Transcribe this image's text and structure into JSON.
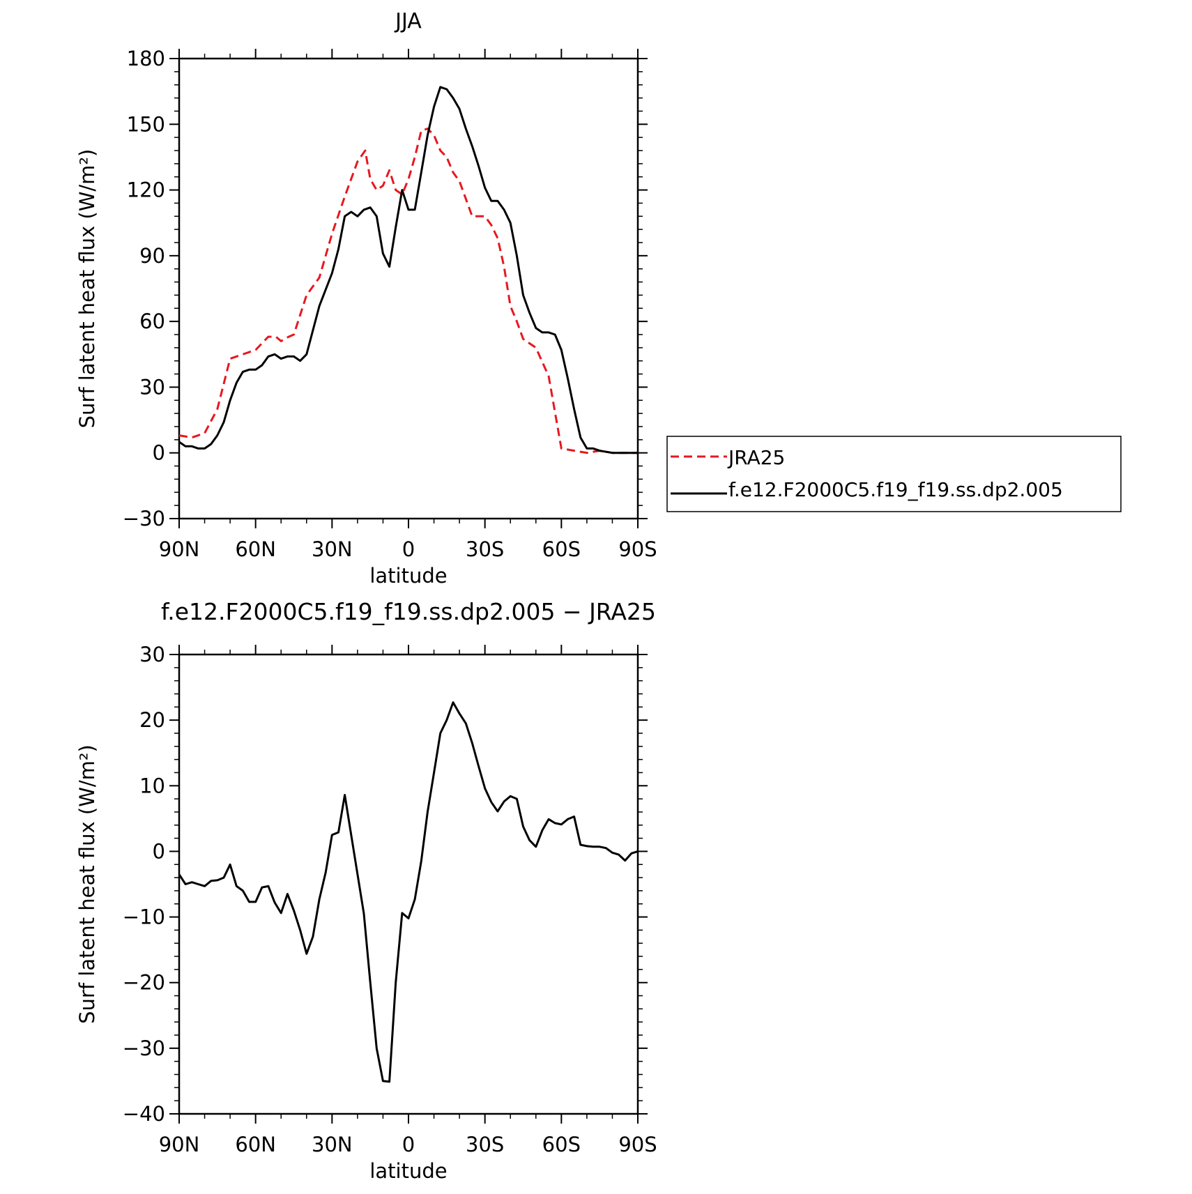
{
  "figure": {
    "title_top": "JJA",
    "title_bottom": "f.e12.F2000C5.f19_f19.ss.dp2.005 − JRA25"
  },
  "chart_data": [
    {
      "type": "line",
      "title": "JJA",
      "xlabel": "latitude",
      "ylabel": "Surf latent heat flux (W/m²)",
      "xlim": [
        90,
        -90
      ],
      "ylim": [
        -30,
        180
      ],
      "xticks": [
        90,
        60,
        30,
        0,
        -30,
        -60,
        -90
      ],
      "xtick_labels": [
        "90N",
        "60N",
        "30N",
        "0",
        "30S",
        "60S",
        "90S"
      ],
      "yticks": [
        -30,
        0,
        30,
        60,
        90,
        120,
        150,
        180
      ],
      "ytick_labels": [
        "−30",
        "0",
        "30",
        "60",
        "90",
        "120",
        "150",
        "180"
      ],
      "legend_position": "right",
      "grid": false,
      "series": [
        {
          "name": "JRA25",
          "color": "#e8171f",
          "dash": "dashed",
          "x": [
            90,
            85,
            80,
            75,
            70,
            65,
            60,
            55,
            52,
            50,
            47,
            45,
            40,
            35,
            30,
            25,
            20,
            17,
            15,
            12.5,
            10,
            7.5,
            5,
            2.5,
            0,
            -2.5,
            -5,
            -7.5,
            -10,
            -12.5,
            -15,
            -17.5,
            -20,
            -25,
            -30,
            -32.5,
            -35,
            -37.5,
            -40,
            -42.5,
            -45,
            -50,
            -55,
            -60,
            -65,
            -70,
            -75,
            -80,
            -85,
            -90
          ],
          "y": [
            8,
            7,
            9,
            20,
            43,
            45,
            47,
            53,
            53,
            51,
            53,
            54,
            72,
            80,
            100,
            117,
            133,
            138,
            125,
            120,
            122,
            129,
            120,
            118,
            125,
            135,
            147,
            148,
            145,
            138,
            135,
            128,
            124,
            108,
            108,
            104,
            98,
            85,
            67,
            60,
            52,
            48,
            35,
            2,
            1,
            0,
            1,
            0,
            0,
            0
          ]
        },
        {
          "name": "f.e12.F2000C5.f19_f19.ss.dp2.005",
          "color": "#000000",
          "dash": "solid",
          "x": [
            90,
            87.5,
            85,
            82.5,
            80,
            77.5,
            75,
            72.5,
            70,
            67.5,
            65,
            62.5,
            60,
            57.5,
            55,
            52.5,
            50,
            47.5,
            45,
            42.5,
            40,
            35,
            30,
            27.5,
            25,
            22.5,
            20,
            17.5,
            15,
            12.5,
            10,
            7.5,
            5,
            2.5,
            0,
            -2.5,
            -5,
            -7.5,
            -10,
            -12.5,
            -15,
            -17.5,
            -20,
            -22.5,
            -25,
            -27.5,
            -30,
            -32.5,
            -35,
            -37.5,
            -40,
            -42.5,
            -45,
            -47.5,
            -50,
            -52.5,
            -55,
            -57.5,
            -60,
            -62.5,
            -65,
            -67.5,
            -70,
            -72.5,
            -75,
            -80,
            -85,
            -90
          ],
          "y": [
            5,
            3,
            3,
            2,
            2,
            4,
            8,
            14,
            24,
            32,
            37,
            38,
            38,
            40,
            44,
            45,
            43,
            44,
            44,
            42,
            45,
            67,
            82,
            93,
            108,
            110,
            108,
            111,
            112,
            108,
            91,
            85,
            103,
            120,
            111,
            111,
            128,
            145,
            158,
            167,
            166,
            162,
            157,
            148,
            140,
            131,
            121,
            115,
            115,
            111,
            105,
            90,
            72,
            64,
            57,
            55,
            55,
            54,
            47,
            34,
            20,
            7,
            2,
            2,
            1,
            0,
            0,
            0
          ]
        }
      ]
    },
    {
      "type": "line",
      "title": "f.e12.F2000C5.f19_f19.ss.dp2.005 − JRA25",
      "xlabel": "latitude",
      "ylabel": "Surf latent heat flux (W/m²)",
      "xlim": [
        90,
        -90
      ],
      "ylim": [
        -40,
        30
      ],
      "xticks": [
        90,
        60,
        30,
        0,
        -30,
        -60,
        -90
      ],
      "xtick_labels": [
        "90N",
        "60N",
        "30N",
        "0",
        "30S",
        "60S",
        "90S"
      ],
      "yticks": [
        -40,
        -30,
        -20,
        -10,
        0,
        10,
        20,
        30
      ],
      "ytick_labels": [
        "−40",
        "−30",
        "−20",
        "−10",
        "0",
        "10",
        "20",
        "30"
      ],
      "grid": false,
      "series": [
        {
          "color": "#000000",
          "dash": "solid",
          "x": [
            90,
            87.5,
            85,
            82.5,
            80,
            77.5,
            75,
            72.5,
            70,
            67.5,
            65,
            62.5,
            60,
            57.5,
            55,
            52.5,
            50,
            47.5,
            45,
            42.5,
            40,
            37.5,
            35,
            32.5,
            30,
            27.5,
            25,
            22.5,
            20,
            17.5,
            15,
            12.5,
            10,
            7.5,
            5,
            2.5,
            0,
            -2.5,
            -5,
            -7.5,
            -10,
            -12.5,
            -15,
            -17.5,
            -20,
            -22.5,
            -25,
            -27.5,
            -30,
            -32.5,
            -35,
            -37.5,
            -40,
            -42.5,
            -45,
            -47.5,
            -50,
            -52.5,
            -55,
            -57.5,
            -60,
            -62.5,
            -65,
            -67.5,
            -70,
            -72.5,
            -75,
            -77.5,
            -80,
            -82.5,
            -85,
            -87.5,
            -90
          ],
          "y": [
            -3.5,
            -5,
            -4.7,
            -5,
            -5.3,
            -4.5,
            -4.4,
            -4,
            -2,
            -5.3,
            -6,
            -7.7,
            -7.7,
            -5.5,
            -5.3,
            -7.8,
            -9.4,
            -6.5,
            -9,
            -12,
            -15.6,
            -13,
            -7.3,
            -3.2,
            2.5,
            2.9,
            8.6,
            2.5,
            -3.5,
            -9.5,
            -20,
            -30,
            -35,
            -35.1,
            -20,
            -9.4,
            -10.2,
            -7.3,
            -1.5,
            6,
            12,
            18,
            20,
            22.7,
            21,
            19.5,
            16.5,
            13,
            9.6,
            7.5,
            6.1,
            7.6,
            8.4,
            8,
            3.8,
            1.7,
            0.7,
            3.2,
            4.9,
            4.3,
            4.1,
            4.9,
            5.3,
            1,
            0.8,
            0.7,
            0.7,
            0.5,
            -0.2,
            -0.5,
            -1.4,
            -0.3,
            0
          ]
        }
      ]
    }
  ]
}
